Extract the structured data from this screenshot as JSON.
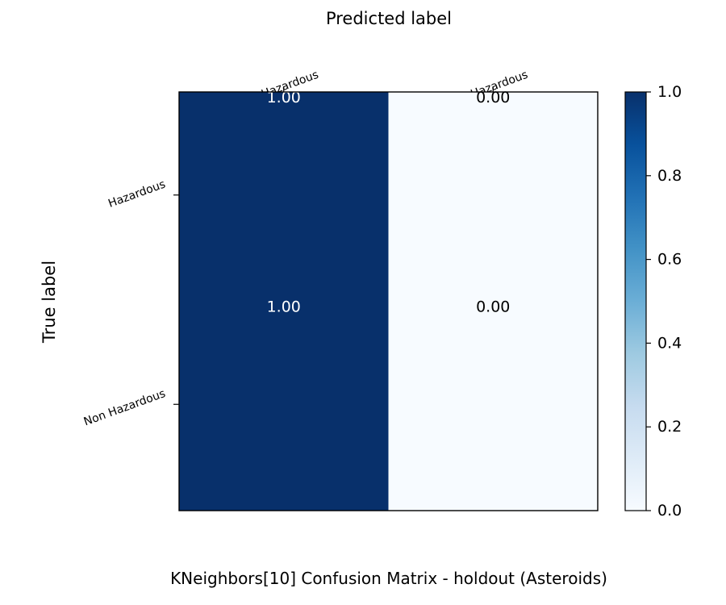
{
  "chart_data": {
    "type": "heatmap",
    "title": "KNeighbors[10] Confusion Matrix - holdout (Asteroids)",
    "xlabel": "Predicted label",
    "ylabel": "True label",
    "x_categories": [
      "Hazardous",
      "Non Hazardous"
    ],
    "y_categories": [
      "Hazardous",
      "Non Hazardous"
    ],
    "values": [
      [
        1.0,
        0.0
      ],
      [
        1.0,
        0.0
      ]
    ],
    "value_labels": [
      [
        "1.00",
        "0.00"
      ],
      [
        "1.00",
        "0.00"
      ]
    ],
    "colorbar": {
      "range": [
        0,
        1
      ],
      "ticks": [
        "0.0",
        "0.2",
        "0.4",
        "0.6",
        "0.8",
        "1.0"
      ],
      "colormap": "Blues"
    },
    "colors": {
      "low": "#f7fbff",
      "high": "#08306b"
    },
    "xlabel_position": "top"
  }
}
